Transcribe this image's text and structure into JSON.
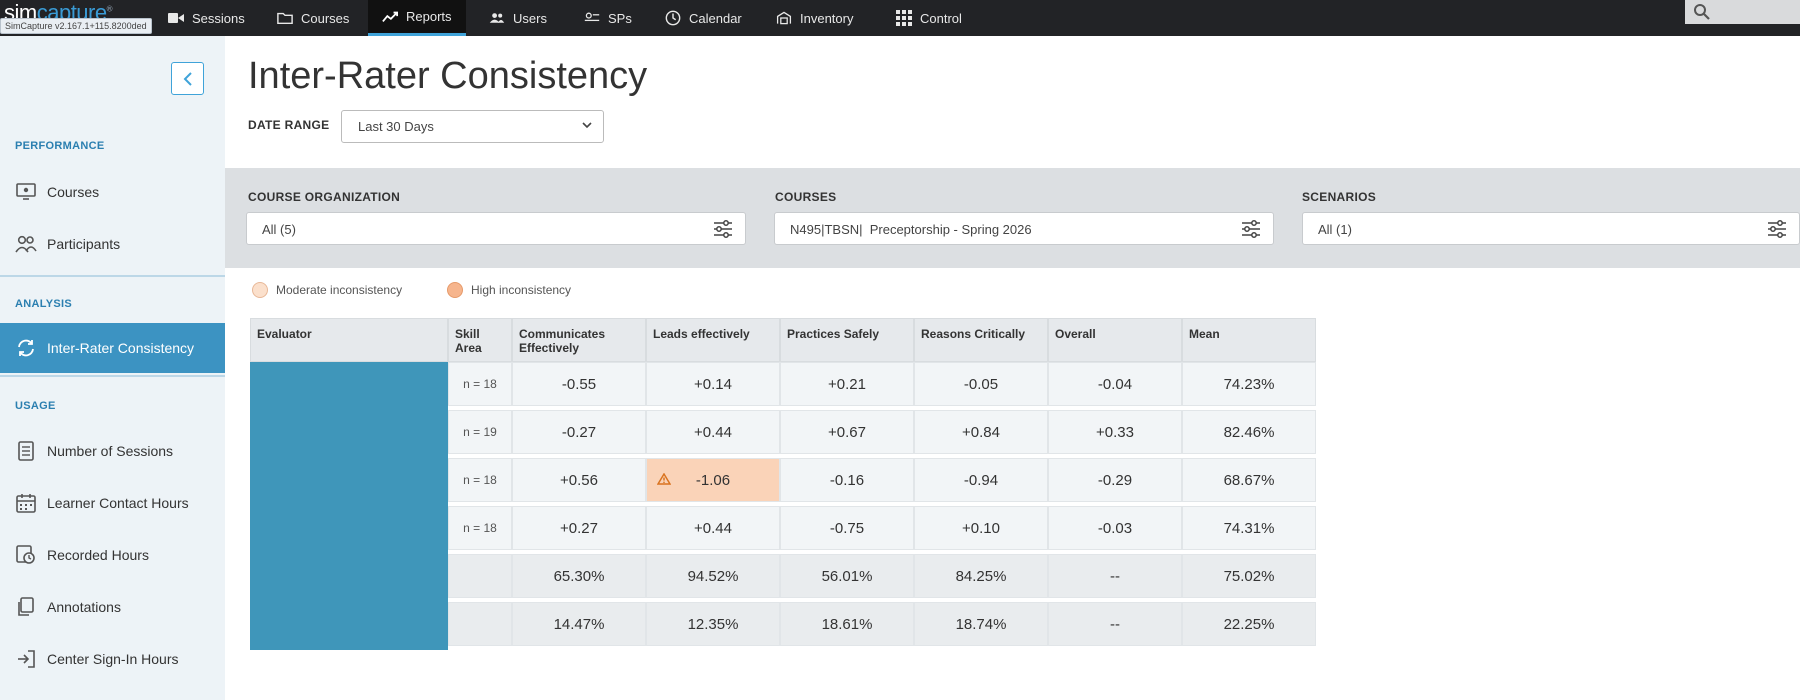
{
  "app": {
    "logo_sim": "sim",
    "logo_capture": "capture",
    "logo_reg": "®",
    "version": "SimCapture v2.167.1+115.8200ded"
  },
  "nav": {
    "items": [
      {
        "label": "Sessions",
        "icon": "video-camera-icon"
      },
      {
        "label": "Courses",
        "icon": "folder-icon"
      },
      {
        "label": "Reports",
        "icon": "trend-chart-icon",
        "active": true
      },
      {
        "label": "Users",
        "icon": "users-icon"
      },
      {
        "label": "SPs",
        "icon": "sp-card-icon"
      },
      {
        "label": "Calendar",
        "icon": "clock-icon"
      },
      {
        "label": "Inventory",
        "icon": "inventory-icon"
      },
      {
        "label": "Control",
        "icon": "grid-icon"
      }
    ],
    "search_icon": "search-icon"
  },
  "sidebar": {
    "sections": {
      "performance": "PERFORMANCE",
      "analysis": "ANALYSIS",
      "usage": "USAGE"
    },
    "items": [
      {
        "label": "Courses",
        "icon": "monitor-icon"
      },
      {
        "label": "Participants",
        "icon": "participants-icon"
      },
      {
        "label": "Inter-Rater Consistency",
        "icon": "sync-icon",
        "active": true
      },
      {
        "label": "Number of Sessions",
        "icon": "document-icon"
      },
      {
        "label": "Learner Contact Hours",
        "icon": "calendar-icon"
      },
      {
        "label": "Recorded Hours",
        "icon": "recorded-icon"
      },
      {
        "label": "Annotations",
        "icon": "annotation-icon"
      },
      {
        "label": "Center Sign-In Hours",
        "icon": "sign-in-icon"
      }
    ]
  },
  "main": {
    "title": "Inter-Rater Consistency",
    "date_range_label": "DATE RANGE",
    "date_range_value": "Last 30 Days",
    "filters": {
      "course_org_label": "COURSE ORGANIZATION",
      "course_org_value": "All (5)",
      "courses_label": "COURSES",
      "courses_value": "N495|TBSN|  Preceptorship - Spring 2026",
      "scenarios_label": "SCENARIOS",
      "scenarios_value": "All (1)"
    },
    "legend": {
      "moderate": "Moderate inconsistency",
      "high": "High inconsistency",
      "moderate_color": "#fbe0cc",
      "high_color": "#f6b58d"
    }
  },
  "table": {
    "headers": [
      "Evaluator",
      "Skill Area",
      "Communicates Effectively",
      "Leads effectively",
      "Practices Safely",
      "Reasons Critically",
      "Overall",
      "Mean"
    ],
    "rows": [
      {
        "n": "n = 18",
        "values": [
          "-0.55",
          "+0.14",
          "+0.21",
          "-0.05",
          "-0.04",
          "74.23%"
        ]
      },
      {
        "n": "n = 19",
        "values": [
          "-0.27",
          "+0.44",
          "+0.67",
          "+0.84",
          "+0.33",
          "82.46%"
        ]
      },
      {
        "n": "n = 18",
        "values": [
          "+0.56",
          "-1.06",
          "-0.16",
          "-0.94",
          "-0.29",
          "68.67%"
        ]
      },
      {
        "n": "n = 18",
        "values": [
          "+0.27",
          "+0.44",
          "-0.75",
          "+0.10",
          "-0.03",
          "74.31%"
        ]
      },
      {
        "n": "",
        "values": [
          "65.30%",
          "94.52%",
          "56.01%",
          "84.25%",
          "--",
          "75.02%"
        ]
      },
      {
        "n": "",
        "values": [
          "14.47%",
          "12.35%",
          "18.61%",
          "18.74%",
          "--",
          "22.25%"
        ]
      }
    ],
    "evaluator_color": "#3f96ba"
  }
}
